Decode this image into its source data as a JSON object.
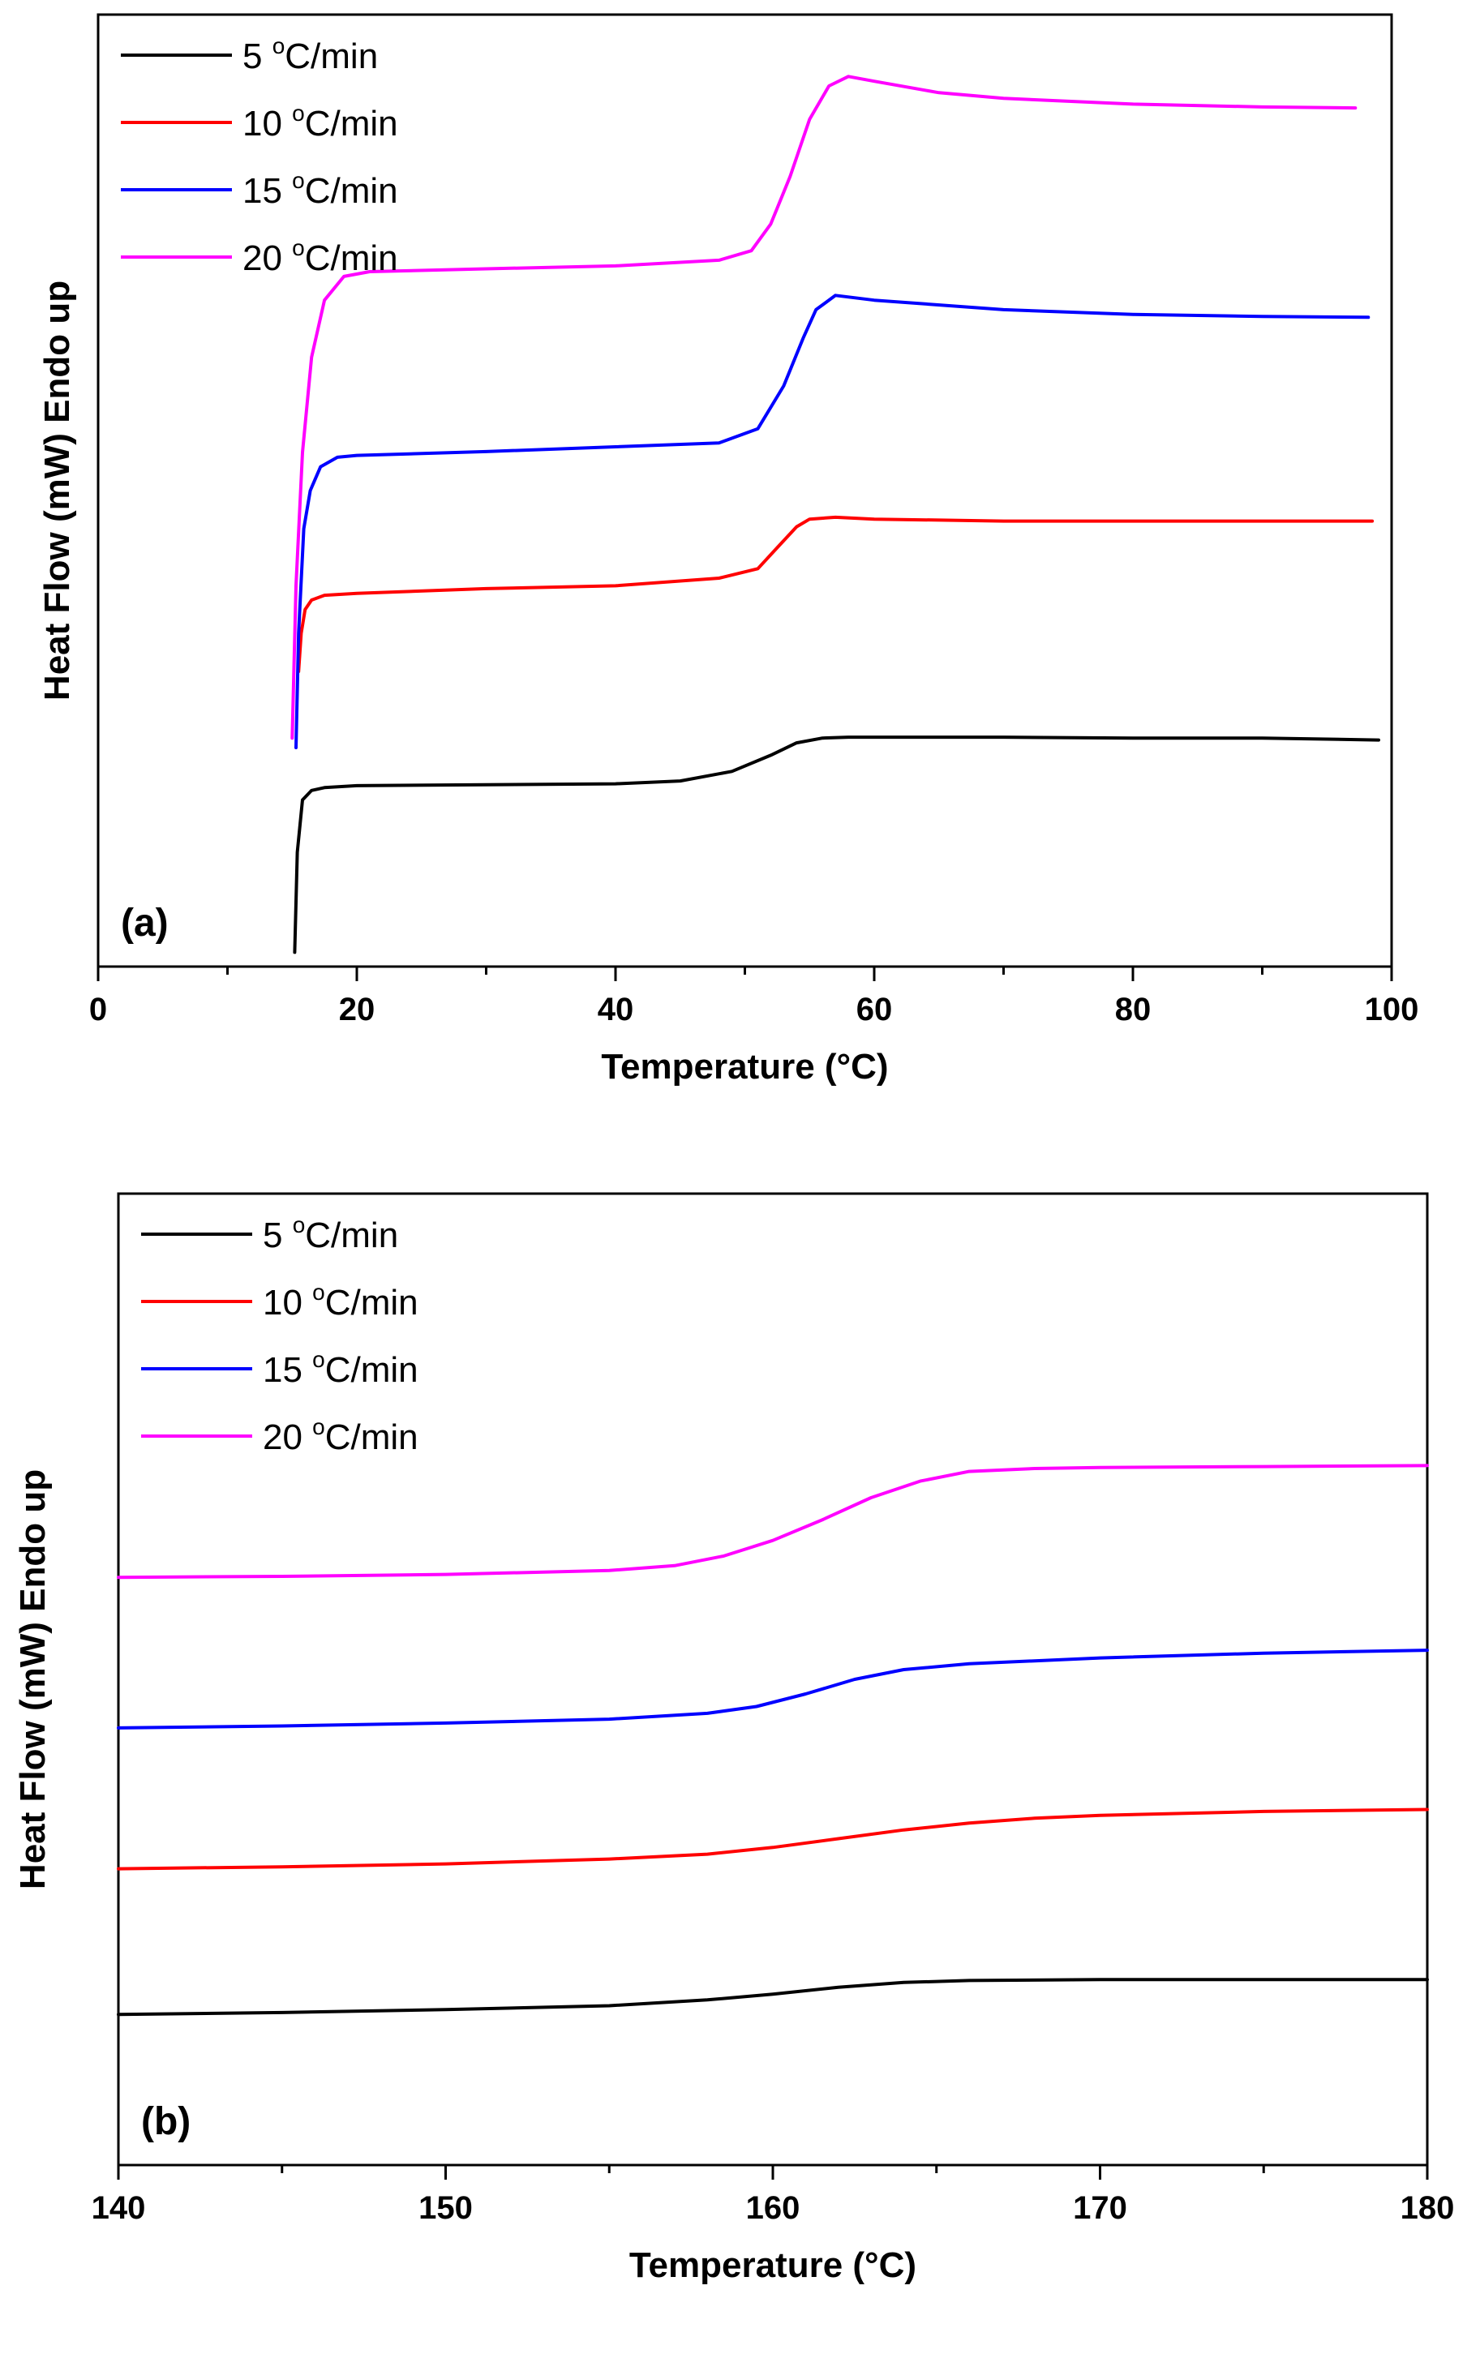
{
  "chart_data": [
    {
      "type": "line",
      "panel_label": "(a)",
      "xlabel": "Temperature (°C)",
      "ylabel": "Heat Flow (mW) Endo up",
      "xlim": [
        0,
        100
      ],
      "ylim": [
        0,
        1
      ],
      "xticks": [
        0,
        20,
        40,
        60,
        80,
        100
      ],
      "xtick_labels": [
        "0",
        "20",
        "40",
        "60",
        "80",
        "100"
      ],
      "y_tick_labels": false,
      "grid": false,
      "legend": "top-left",
      "series": [
        {
          "name": "5 °C/min",
          "legend_base": "5 ",
          "legend_sup": "o",
          "legend_unit": "C/min",
          "color": "#000000",
          "x": [
            15.2,
            15.4,
            15.8,
            16.5,
            17.5,
            20,
            30,
            40,
            45,
            49,
            52,
            54,
            56,
            58,
            60,
            70,
            80,
            90,
            99
          ],
          "y": [
            0.015,
            0.12,
            0.175,
            0.185,
            0.188,
            0.19,
            0.191,
            0.192,
            0.195,
            0.205,
            0.222,
            0.235,
            0.24,
            0.241,
            0.241,
            0.241,
            0.24,
            0.24,
            0.238
          ]
        },
        {
          "name": "10 °C/min",
          "legend_base": "10 ",
          "legend_sup": "o",
          "legend_unit": "C/min",
          "color": "#ff0000",
          "x": [
            15.5,
            15.7,
            16,
            16.5,
            17.5,
            20,
            30,
            40,
            48,
            51,
            52.5,
            54,
            55,
            57,
            60,
            70,
            80,
            90,
            98.5
          ],
          "y": [
            0.31,
            0.35,
            0.375,
            0.385,
            0.39,
            0.392,
            0.397,
            0.4,
            0.408,
            0.418,
            0.44,
            0.462,
            0.47,
            0.472,
            0.47,
            0.468,
            0.468,
            0.468,
            0.468
          ]
        },
        {
          "name": "15 °C/min",
          "legend_base": "15 ",
          "legend_sup": "o",
          "legend_unit": "C/min",
          "color": "#0000ff",
          "x": [
            15.3,
            15.5,
            15.9,
            16.4,
            17.2,
            18.5,
            20,
            30,
            40,
            48,
            51,
            53,
            54.5,
            55.5,
            57,
            60,
            70,
            80,
            90,
            98.2
          ],
          "y": [
            0.23,
            0.35,
            0.46,
            0.5,
            0.525,
            0.535,
            0.537,
            0.541,
            0.546,
            0.55,
            0.565,
            0.61,
            0.66,
            0.69,
            0.705,
            0.7,
            0.69,
            0.685,
            0.683,
            0.682
          ]
        },
        {
          "name": "20 °C/min",
          "legend_base": "20 ",
          "legend_sup": "o",
          "legend_unit": "C/min",
          "color": "#ff00ff",
          "x": [
            15,
            15.3,
            15.8,
            16.5,
            17.5,
            19,
            21,
            30,
            40,
            48,
            50.5,
            52,
            53.5,
            55,
            56.5,
            58,
            60,
            65,
            70,
            80,
            90,
            97.2
          ],
          "y": [
            0.24,
            0.4,
            0.54,
            0.64,
            0.7,
            0.725,
            0.73,
            0.733,
            0.736,
            0.742,
            0.752,
            0.78,
            0.83,
            0.89,
            0.925,
            0.935,
            0.93,
            0.918,
            0.912,
            0.906,
            0.903,
            0.902
          ]
        }
      ]
    },
    {
      "type": "line",
      "panel_label": "(b)",
      "xlabel": "Temperature (°C)",
      "ylabel": "Heat Flow (mW) Endo up",
      "xlim": [
        140,
        180
      ],
      "ylim": [
        0,
        1
      ],
      "xticks": [
        140,
        150,
        160,
        170,
        180
      ],
      "xtick_labels": [
        "140",
        "150",
        "160",
        "170",
        "180"
      ],
      "y_tick_labels": false,
      "grid": false,
      "legend": "top-left",
      "series": [
        {
          "name": "5 °C/min",
          "legend_base": "5 ",
          "legend_sup": "o",
          "legend_unit": "C/min",
          "color": "#000000",
          "x": [
            140,
            145,
            150,
            155,
            158,
            160,
            162,
            164,
            166,
            170,
            175,
            180
          ],
          "y": [
            0.155,
            0.157,
            0.16,
            0.164,
            0.17,
            0.176,
            0.183,
            0.188,
            0.19,
            0.191,
            0.191,
            0.191
          ]
        },
        {
          "name": "10 °C/min",
          "legend_base": "10 ",
          "legend_sup": "o",
          "legend_unit": "C/min",
          "color": "#ff0000",
          "x": [
            140,
            145,
            150,
            155,
            158,
            160,
            162,
            164,
            166,
            168,
            170,
            175,
            180
          ],
          "y": [
            0.305,
            0.307,
            0.31,
            0.315,
            0.32,
            0.327,
            0.336,
            0.345,
            0.352,
            0.357,
            0.36,
            0.364,
            0.366
          ]
        },
        {
          "name": "15 °C/min",
          "legend_base": "15 ",
          "legend_sup": "o",
          "legend_unit": "C/min",
          "color": "#0000ff",
          "x": [
            140,
            145,
            150,
            155,
            158,
            159.5,
            161,
            162.5,
            164,
            166,
            170,
            175,
            180
          ],
          "y": [
            0.45,
            0.452,
            0.455,
            0.459,
            0.465,
            0.472,
            0.485,
            0.5,
            0.51,
            0.516,
            0.522,
            0.527,
            0.53
          ]
        },
        {
          "name": "20 °C/min",
          "legend_base": "20 ",
          "legend_sup": "o",
          "legend_unit": "C/min",
          "color": "#ff00ff",
          "x": [
            140,
            145,
            150,
            155,
            157,
            158.5,
            160,
            161.5,
            163,
            164.5,
            166,
            168,
            170,
            175,
            180
          ],
          "y": [
            0.605,
            0.606,
            0.608,
            0.612,
            0.617,
            0.627,
            0.643,
            0.664,
            0.687,
            0.704,
            0.714,
            0.717,
            0.718,
            0.719,
            0.72
          ]
        }
      ]
    }
  ]
}
